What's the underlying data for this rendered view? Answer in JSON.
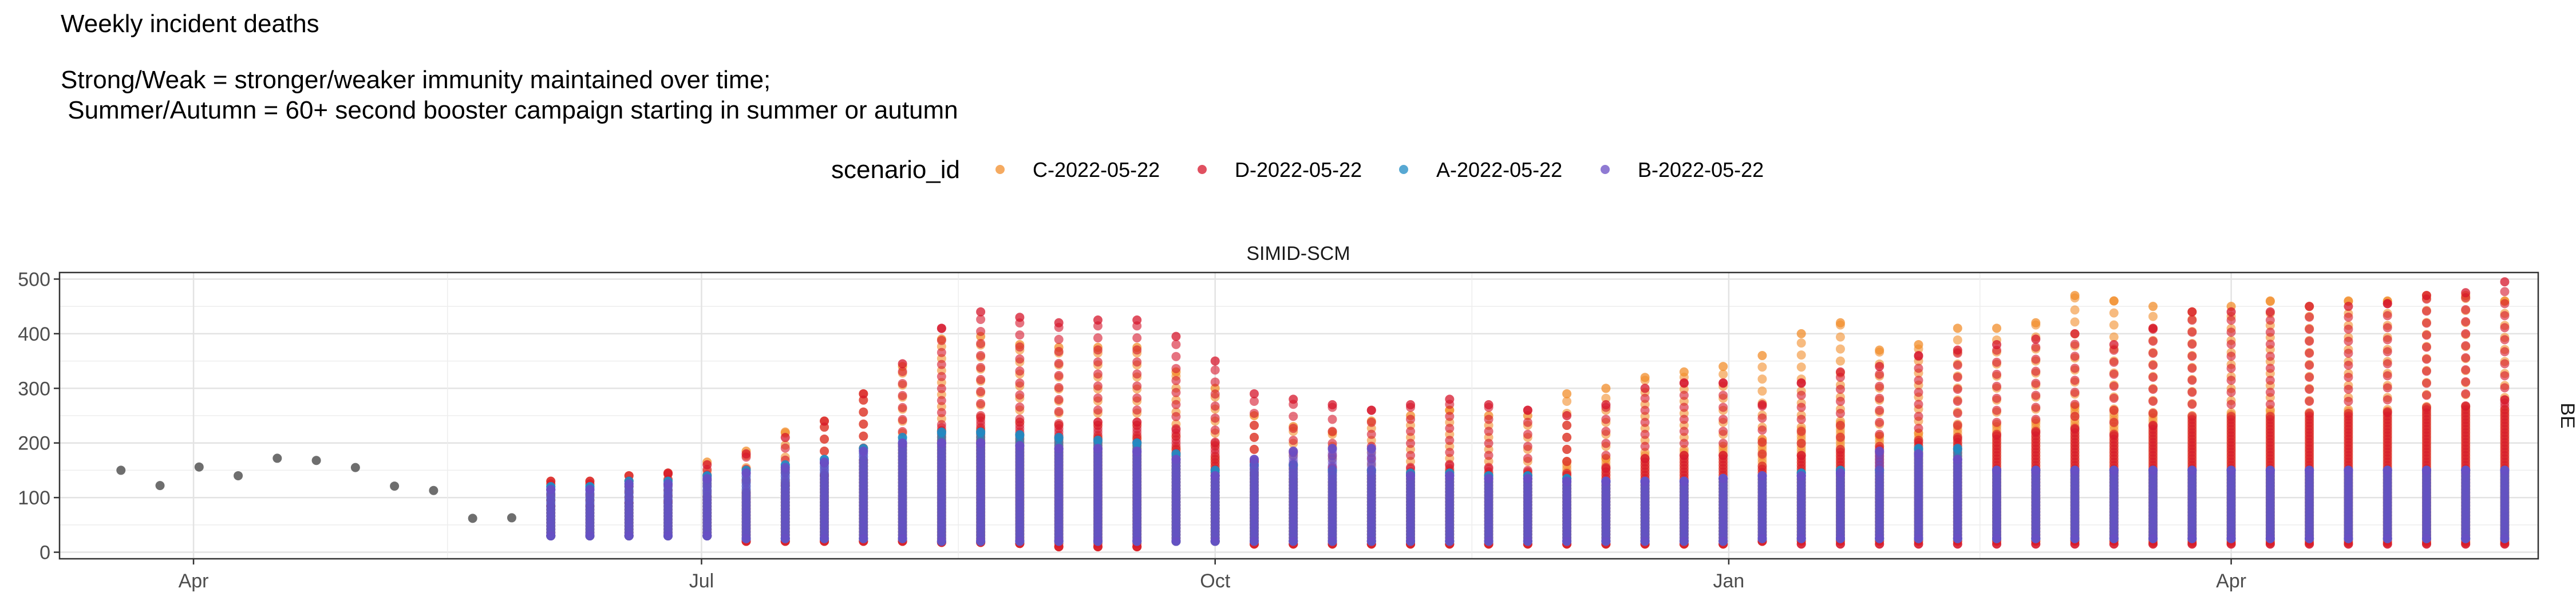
{
  "chart_data": {
    "type": "scatter",
    "title": "Weekly incident deaths",
    "subtitle_lines": [
      "Strong/Weak = stronger/weaker immunity maintained over time;",
      " Summer/Autumn = 60+ second booster campaign starting in summer or autumn"
    ],
    "facet_title": "SIMID-SCM",
    "facet_strip": "BE",
    "legend": {
      "title": "scenario_id",
      "position": "top",
      "items": [
        {
          "label": "C-2022-05-22",
          "color": "#F28E2B"
        },
        {
          "label": "D-2022-05-22",
          "color": "#D6162B"
        },
        {
          "label": "A-2022-05-22",
          "color": "#1F8BC4"
        },
        {
          "label": "B-2022-05-22",
          "color": "#6A4DC4"
        }
      ]
    },
    "xlabel": "",
    "ylabel": "",
    "x_ticks": [
      "Apr",
      "Jul",
      "Oct",
      "Jan",
      "Apr"
    ],
    "x_tick_dates": [
      "2022-04-01",
      "2022-07-01",
      "2022-10-01",
      "2023-01-01",
      "2023-04-01"
    ],
    "xlim": [
      "2022-03-08",
      "2023-05-26"
    ],
    "y_ticks": [
      "0",
      "100",
      "200",
      "300",
      "400",
      "500"
    ],
    "ylim": [
      -12,
      512
    ],
    "grid": true,
    "observed": {
      "color": "#555555",
      "dates": [
        "2022-03-19",
        "2022-03-26",
        "2022-04-02",
        "2022-04-09",
        "2022-04-16",
        "2022-04-23",
        "2022-04-30",
        "2022-05-07",
        "2022-05-14",
        "2022-05-21",
        "2022-05-28"
      ],
      "values": [
        150,
        122,
        156,
        140,
        172,
        168,
        155,
        121,
        113,
        62,
        63
      ]
    },
    "scenarios": {
      "dates": [
        "2022-06-04",
        "2022-06-11",
        "2022-06-18",
        "2022-06-25",
        "2022-07-02",
        "2022-07-09",
        "2022-07-16",
        "2022-07-23",
        "2022-07-30",
        "2022-08-06",
        "2022-08-13",
        "2022-08-20",
        "2022-08-27",
        "2022-09-03",
        "2022-09-10",
        "2022-09-17",
        "2022-09-24",
        "2022-10-01",
        "2022-10-08",
        "2022-10-15",
        "2022-10-22",
        "2022-10-29",
        "2022-11-05",
        "2022-11-12",
        "2022-11-19",
        "2022-11-26",
        "2022-12-03",
        "2022-12-10",
        "2022-12-17",
        "2022-12-24",
        "2022-12-31",
        "2023-01-07",
        "2023-01-14",
        "2023-01-21",
        "2023-01-28",
        "2023-02-04",
        "2023-02-11",
        "2023-02-18",
        "2023-02-25",
        "2023-03-04",
        "2023-03-11",
        "2023-03-18",
        "2023-03-25",
        "2023-04-01",
        "2023-04-08",
        "2023-04-15",
        "2023-04-22",
        "2023-04-29",
        "2023-05-06",
        "2023-05-13",
        "2023-05-20"
      ],
      "series": [
        {
          "name": "C-2022-05-22",
          "max": [
            130,
            130,
            140,
            145,
            165,
            185,
            220,
            240,
            290,
            340,
            390,
            395,
            380,
            375,
            375,
            375,
            330,
            300,
            250,
            230,
            220,
            240,
            250,
            260,
            250,
            250,
            290,
            300,
            320,
            330,
            340,
            360,
            400,
            420,
            370,
            380,
            410,
            410,
            420,
            470,
            460,
            450,
            440,
            450,
            460,
            450,
            460,
            460,
            470,
            470,
            460
          ],
          "min": [
            30,
            30,
            30,
            30,
            30,
            20,
            20,
            20,
            20,
            20,
            18,
            18,
            16,
            10,
            10,
            10,
            20,
            20,
            15,
            15,
            15,
            15,
            15,
            15,
            15,
            15,
            15,
            15,
            15,
            15,
            15,
            20,
            20,
            20,
            20,
            20,
            20,
            20,
            20,
            20,
            20,
            18,
            18,
            18,
            18,
            18,
            18,
            18,
            18,
            18,
            18
          ]
        },
        {
          "name": "D-2022-05-22",
          "max": [
            130,
            130,
            140,
            145,
            160,
            180,
            210,
            240,
            290,
            345,
            410,
            440,
            430,
            420,
            425,
            425,
            395,
            350,
            290,
            280,
            270,
            260,
            270,
            280,
            270,
            260,
            250,
            270,
            300,
            310,
            310,
            270,
            310,
            330,
            340,
            360,
            370,
            380,
            390,
            400,
            380,
            410,
            440,
            440,
            440,
            450,
            450,
            455,
            470,
            475,
            495
          ],
          "min": [
            30,
            30,
            30,
            30,
            30,
            20,
            20,
            20,
            20,
            20,
            18,
            18,
            16,
            10,
            10,
            10,
            20,
            20,
            15,
            15,
            15,
            15,
            15,
            15,
            15,
            15,
            15,
            15,
            15,
            15,
            15,
            20,
            15,
            15,
            15,
            15,
            15,
            15,
            15,
            15,
            15,
            15,
            15,
            15,
            15,
            15,
            15,
            15,
            15,
            15,
            15
          ]
        },
        {
          "name": "A-2022-05-22",
          "max": [
            120,
            120,
            130,
            130,
            140,
            150,
            160,
            170,
            190,
            210,
            220,
            220,
            215,
            210,
            205,
            200,
            180,
            150,
            160,
            160,
            150,
            150,
            145,
            145,
            140,
            140,
            135,
            130,
            130,
            130,
            135,
            140,
            145,
            150,
            150,
            190,
            190,
            150,
            150,
            150,
            150,
            150,
            150,
            150,
            150,
            150,
            150,
            150,
            150,
            150,
            150
          ],
          "min": [
            30,
            30,
            30,
            30,
            30,
            25,
            25,
            25,
            25,
            25,
            20,
            20,
            20,
            20,
            20,
            20,
            20,
            20,
            20,
            20,
            20,
            20,
            20,
            20,
            20,
            20,
            20,
            20,
            20,
            20,
            20,
            25,
            25,
            25,
            25,
            25,
            25,
            25,
            25,
            25,
            25,
            25,
            25,
            25,
            25,
            25,
            25,
            25,
            25,
            25,
            25
          ]
        },
        {
          "name": "B-2022-05-22",
          "max": [
            115,
            115,
            125,
            125,
            135,
            145,
            155,
            165,
            185,
            200,
            200,
            200,
            195,
            190,
            190,
            185,
            170,
            140,
            170,
            185,
            190,
            190,
            140,
            140,
            135,
            135,
            130,
            130,
            130,
            130,
            135,
            140,
            140,
            145,
            185,
            180,
            170,
            150,
            150,
            150,
            150,
            150,
            150,
            150,
            150,
            150,
            150,
            150,
            150,
            150,
            150
          ],
          "min": [
            30,
            30,
            30,
            30,
            30,
            25,
            25,
            25,
            25,
            25,
            20,
            20,
            20,
            20,
            20,
            20,
            20,
            20,
            20,
            20,
            20,
            20,
            20,
            20,
            20,
            20,
            20,
            20,
            20,
            20,
            20,
            25,
            25,
            25,
            25,
            25,
            25,
            25,
            25,
            25,
            25,
            25,
            25,
            25,
            25,
            25,
            25,
            25,
            25,
            25,
            25
          ]
        }
      ]
    }
  }
}
